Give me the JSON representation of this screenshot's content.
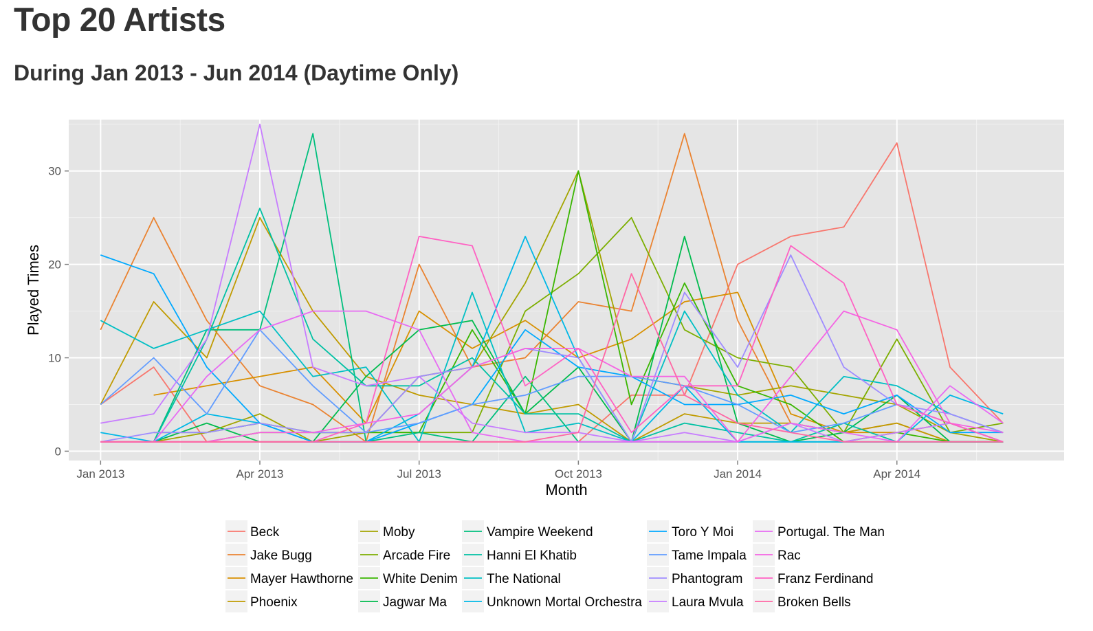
{
  "page": {
    "title": "Top 20 Artists",
    "subtitle": "During Jan 2013 - Jun 2014 (Daytime Only)"
  },
  "chart_data": {
    "type": "line",
    "title": "Top 20 Artists",
    "subtitle": "During Jan 2013 - Jun 2014 (Daytime Only)",
    "xlabel": "Month",
    "ylabel": "Played Times",
    "ylim": [
      -1,
      35.5
    ],
    "xlim": [
      -0.6,
      18.15
    ],
    "grid": true,
    "x_ticks": [
      {
        "pos": 0,
        "label": "Jan 2013"
      },
      {
        "pos": 3,
        "label": "Apr 2013"
      },
      {
        "pos": 6,
        "label": "Jul 2013"
      },
      {
        "pos": 9,
        "label": "Oct 2013"
      },
      {
        "pos": 12,
        "label": "Jan 2014"
      },
      {
        "pos": 15,
        "label": "Apr 2014"
      }
    ],
    "y_ticks": [
      0,
      10,
      20,
      30
    ],
    "categories": [
      "Jan 2013",
      "Feb 2013",
      "Mar 2013",
      "Apr 2013",
      "May 2013",
      "Jun 2013",
      "Jul 2013",
      "Aug 2013",
      "Sep 2013",
      "Oct 2013",
      "Nov 2013",
      "Dec 2013",
      "Jan 2014",
      "Feb 2014",
      "Mar 2014",
      "Apr 2014",
      "May 2014",
      "Jun 2014"
    ],
    "legend_position": "bottom",
    "series": [
      {
        "name": "Beck",
        "color": "#F8766D",
        "values": [
          5,
          9,
          1,
          1,
          1,
          1,
          1,
          1,
          1,
          1,
          6,
          6,
          20,
          23,
          24,
          33,
          9,
          3
        ]
      },
      {
        "name": "Jake Bugg",
        "color": "#EA8331",
        "values": [
          13,
          25,
          14,
          7,
          5,
          1,
          20,
          9,
          10,
          16,
          15,
          34,
          14,
          3,
          2,
          3,
          1,
          1
        ]
      },
      {
        "name": "Mayer Hawthorne",
        "color": "#D89000",
        "values": [
          null,
          6,
          7,
          8,
          9,
          3,
          15,
          11,
          14,
          10,
          12,
          16,
          17,
          4,
          2,
          2,
          3,
          1
        ]
      },
      {
        "name": "Phoenix",
        "color": "#C09B00",
        "values": [
          5,
          16,
          10,
          25,
          15,
          8,
          6,
          5,
          4,
          5,
          1,
          4,
          3,
          3,
          2,
          3,
          1,
          1
        ]
      },
      {
        "name": "Moby",
        "color": "#A3A500",
        "values": [
          null,
          1,
          2,
          4,
          1,
          2,
          8,
          9,
          18,
          30,
          8,
          7,
          6,
          7,
          6,
          5,
          2,
          1
        ]
      },
      {
        "name": "Arcade Fire",
        "color": "#7CAE00",
        "values": [
          1,
          1,
          1,
          2,
          2,
          2,
          2,
          2,
          15,
          19,
          25,
          13,
          10,
          9,
          2,
          12,
          2,
          3
        ]
      },
      {
        "name": "White Denim",
        "color": "#39B600",
        "values": [
          null,
          2,
          2,
          3,
          2,
          2,
          2,
          13,
          4,
          30,
          5,
          18,
          7,
          5,
          1,
          2,
          1,
          1
        ]
      },
      {
        "name": "Jagwar Ma",
        "color": "#00BB4E",
        "values": [
          1,
          1,
          3,
          1,
          1,
          8,
          13,
          14,
          4,
          9,
          1,
          23,
          3,
          1,
          2,
          6,
          1,
          1
        ]
      },
      {
        "name": "Vampire Weekend",
        "color": "#00BF7D",
        "values": [
          null,
          1,
          13,
          13,
          34,
          1,
          2,
          1,
          8,
          1,
          1,
          1,
          1,
          1,
          1,
          1,
          1,
          1
        ]
      },
      {
        "name": "Hanni El Khatib",
        "color": "#00C1A3",
        "values": [
          null,
          1,
          12,
          26,
          12,
          7,
          7,
          10,
          4,
          4,
          1,
          3,
          2,
          1,
          3,
          1,
          1,
          1
        ]
      },
      {
        "name": "The National",
        "color": "#00BFC4",
        "values": [
          14,
          11,
          13,
          15,
          8,
          9,
          1,
          17,
          2,
          3,
          1,
          15,
          6,
          2,
          8,
          7,
          4,
          2
        ]
      },
      {
        "name": "Unknown Mortal Orchestra",
        "color": "#00B8E7",
        "values": [
          2,
          1,
          4,
          3,
          1,
          1,
          4,
          9,
          23,
          10,
          1,
          7,
          1,
          1,
          1,
          1,
          6,
          4
        ]
      },
      {
        "name": "Toro Y Moi",
        "color": "#00A9FF",
        "values": [
          21,
          19,
          9,
          3,
          1,
          1,
          3,
          5,
          13,
          9,
          8,
          5,
          5,
          6,
          4,
          6,
          2,
          2
        ]
      },
      {
        "name": "Tame Impala",
        "color": "#619CFF",
        "values": [
          5,
          10,
          4,
          13,
          7,
          2,
          3,
          5,
          6,
          8,
          8,
          7,
          5,
          2,
          3,
          5,
          3,
          1
        ]
      },
      {
        "name": "Phantogram",
        "color": "#9F8CFF",
        "values": [
          1,
          2,
          2,
          3,
          2,
          2,
          8,
          9,
          11,
          10,
          1,
          17,
          9,
          21,
          9,
          5,
          4,
          2
        ]
      },
      {
        "name": "Laura Mvula",
        "color": "#C77CFF",
        "values": [
          3,
          4,
          12,
          35,
          9,
          7,
          8,
          3,
          2,
          2,
          1,
          2,
          1,
          3,
          1,
          2,
          3,
          1
        ]
      },
      {
        "name": "Portugal. The Man",
        "color": "#E76BF3",
        "values": [
          1,
          1,
          8,
          13,
          15,
          15,
          13,
          2,
          1,
          1,
          1,
          1,
          1,
          3,
          2,
          1,
          7,
          3
        ]
      },
      {
        "name": "Rac",
        "color": "#F564E3",
        "values": [
          1,
          1,
          1,
          2,
          2,
          3,
          4,
          9,
          11,
          11,
          8,
          8,
          1,
          8,
          15,
          13,
          3,
          2
        ]
      },
      {
        "name": "Franz Ferdinand",
        "color": "#FF61C3",
        "values": [
          1,
          1,
          1,
          1,
          1,
          3,
          23,
          22,
          7,
          11,
          2,
          7,
          7,
          22,
          18,
          5,
          3,
          1
        ]
      },
      {
        "name": "Broken Bells",
        "color": "#FF67A4",
        "values": [
          1,
          1,
          1,
          1,
          1,
          1,
          1,
          1,
          1,
          2,
          19,
          6,
          3,
          2,
          1,
          1,
          1,
          1
        ]
      }
    ]
  }
}
